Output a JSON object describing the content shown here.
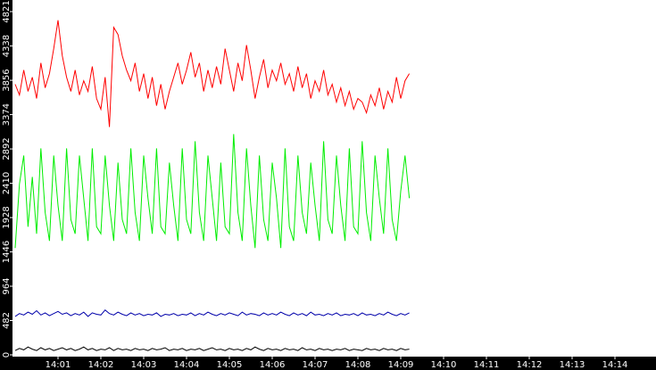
{
  "chart_data": {
    "type": "line",
    "x": [
      0,
      0.1,
      0.2,
      0.3,
      0.4,
      0.5,
      0.6,
      0.7,
      0.8,
      0.9,
      1,
      1.1,
      1.2,
      1.3,
      1.4,
      1.5,
      1.6,
      1.7,
      1.8,
      1.9,
      2,
      2.1,
      2.2,
      2.3,
      2.4,
      2.5,
      2.6,
      2.7,
      2.8,
      2.9,
      3,
      3.1,
      3.2,
      3.3,
      3.4,
      3.5,
      3.6,
      3.7,
      3.8,
      3.9,
      4,
      4.1,
      4.2,
      4.3,
      4.4,
      4.5,
      4.6,
      4.7,
      4.8,
      4.9,
      5,
      5.1,
      5.2,
      5.3,
      5.4,
      5.5,
      5.6,
      5.7,
      5.8,
      5.9,
      6,
      6.1,
      6.2,
      6.3,
      6.4,
      6.5,
      6.6,
      6.7,
      6.8,
      6.9,
      7,
      7.1,
      7.2,
      7.3,
      7.4,
      7.5,
      7.6,
      7.7,
      7.8,
      7.9,
      8,
      8.1,
      8.2,
      8.3,
      8.4,
      8.5,
      8.6,
      8.7,
      8.8,
      8.9,
      9,
      9.1,
      9.2
    ],
    "series": [
      {
        "color": "#ff0000",
        "values": [
          3800,
          3650,
          4000,
          3700,
          3900,
          3600,
          4100,
          3750,
          3950,
          4300,
          4700,
          4200,
          3900,
          3700,
          4000,
          3650,
          3850,
          3700,
          4050,
          3600,
          3450,
          3900,
          3200,
          4600,
          4500,
          4200,
          4000,
          3850,
          4100,
          3700,
          3950,
          3600,
          3900,
          3500,
          3800,
          3450,
          3700,
          3900,
          4100,
          3800,
          4000,
          4250,
          3900,
          4100,
          3700,
          4000,
          3750,
          4050,
          3800,
          4300,
          4000,
          3700,
          4100,
          3850,
          4350,
          4000,
          3600,
          3900,
          4150,
          3750,
          4000,
          3850,
          4100,
          3800,
          3950,
          3700,
          4050,
          3750,
          3950,
          3600,
          3850,
          3700,
          4000,
          3650,
          3800,
          3550,
          3750,
          3500,
          3700,
          3450,
          3600,
          3550,
          3400,
          3650,
          3500,
          3750,
          3450,
          3700,
          3550,
          3900,
          3600,
          3850,
          3950
        ]
      },
      {
        "color": "#00ee00",
        "values": [
          1500,
          2400,
          2800,
          1800,
          2500,
          1700,
          2900,
          2000,
          1600,
          2800,
          2100,
          1600,
          2900,
          1900,
          1700,
          2800,
          2200,
          1600,
          2900,
          1800,
          1700,
          2800,
          2100,
          1600,
          2700,
          1900,
          1700,
          2900,
          2000,
          1600,
          2800,
          2200,
          1700,
          2900,
          1800,
          1700,
          2700,
          2100,
          1600,
          2900,
          1900,
          1700,
          3000,
          2000,
          1600,
          2800,
          2200,
          1600,
          2700,
          1800,
          1700,
          3100,
          2000,
          1600,
          2900,
          2100,
          1500,
          2800,
          1900,
          1600,
          2700,
          2200,
          1500,
          2900,
          1800,
          1600,
          2800,
          2000,
          1700,
          2700,
          2100,
          1600,
          3000,
          1900,
          1700,
          2800,
          2100,
          1600,
          2900,
          1800,
          1700,
          3000,
          2000,
          1600,
          2800,
          2200,
          1700,
          2900,
          1900,
          1600,
          2300,
          2800,
          2200
        ]
      },
      {
        "color": "#0000aa",
        "values": [
          540,
          580,
          560,
          600,
          570,
          620,
          560,
          590,
          550,
          580,
          610,
          570,
          590,
          550,
          580,
          560,
          600,
          540,
          590,
          570,
          560,
          630,
          580,
          560,
          600,
          570,
          550,
          590,
          560,
          580,
          550,
          570,
          560,
          590,
          540,
          570,
          560,
          580,
          550,
          570,
          560,
          590,
          550,
          580,
          560,
          600,
          570,
          550,
          580,
          560,
          590,
          570,
          550,
          600,
          560,
          580,
          570,
          550,
          590,
          560,
          580,
          560,
          600,
          570,
          550,
          590,
          560,
          580,
          550,
          600,
          560,
          570,
          550,
          580,
          560,
          590,
          550,
          570,
          560,
          580,
          550,
          590,
          560,
          570,
          550,
          580,
          560,
          600,
          570,
          550,
          580,
          560,
          590
        ]
      },
      {
        "color": "#000000",
        "values": [
          60,
          90,
          70,
          110,
          80,
          60,
          100,
          70,
          90,
          60,
          80,
          100,
          70,
          90,
          60,
          80,
          110,
          70,
          90,
          60,
          80,
          70,
          100,
          60,
          90,
          70,
          80,
          60,
          90,
          70,
          80,
          60,
          90,
          70,
          80,
          100,
          60,
          80,
          70,
          90,
          60,
          80,
          70,
          90,
          60,
          80,
          100,
          70,
          80,
          60,
          90,
          70,
          80,
          60,
          90,
          70,
          110,
          80,
          60,
          90,
          70,
          80,
          60,
          90,
          70,
          80,
          60,
          100,
          70,
          80,
          60,
          90,
          70,
          80,
          60,
          80,
          70,
          90,
          60,
          80,
          70,
          60,
          90,
          70,
          80,
          60,
          90,
          70,
          80,
          60,
          90,
          70,
          80
        ]
      }
    ],
    "xlim": [
      -0.0625,
      14.958
    ],
    "xticks": [
      {
        "value": 1,
        "label": "14:01"
      },
      {
        "value": 2,
        "label": "14:02"
      },
      {
        "value": 3,
        "label": "14:03"
      },
      {
        "value": 4,
        "label": "14:04"
      },
      {
        "value": 5,
        "label": "14:05"
      },
      {
        "value": 6,
        "label": "14:06"
      },
      {
        "value": 7,
        "label": "14:07"
      },
      {
        "value": 8,
        "label": "14:08"
      },
      {
        "value": 9,
        "label": "14:09"
      },
      {
        "value": 10,
        "label": "14:10"
      },
      {
        "value": 11,
        "label": "14:11"
      },
      {
        "value": 12,
        "label": "14:12"
      },
      {
        "value": 13,
        "label": "14:13"
      },
      {
        "value": 14,
        "label": "14:14"
      }
    ],
    "ylim": [
      0,
      4984
    ],
    "yticks": [
      0,
      482,
      964,
      1446,
      1928,
      2410,
      2892,
      3374,
      3856,
      4338,
      4821
    ]
  }
}
